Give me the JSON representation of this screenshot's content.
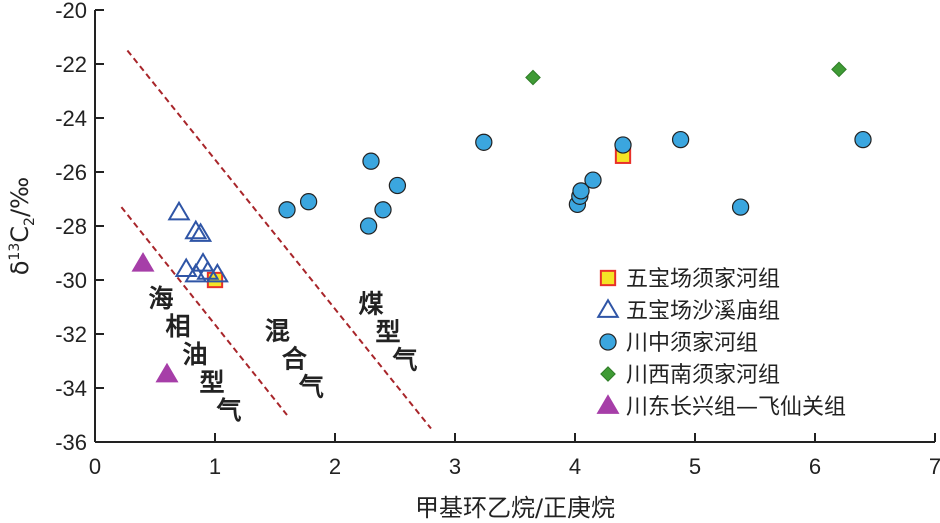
{
  "chart_data": {
    "type": "scatter",
    "xlabel": "甲基环乙烷/正庚烷",
    "ylabel_main": "δ",
    "ylabel_sup": "13",
    "ylabel_mid": "C",
    "ylabel_sub": "2",
    "ylabel_tail": "/‰",
    "xlim": [
      0,
      7
    ],
    "ylim": [
      -36,
      -20
    ],
    "xticks": [
      0,
      1,
      2,
      3,
      4,
      5,
      6,
      7
    ],
    "yticks": [
      -20,
      -22,
      -24,
      -26,
      -28,
      -30,
      -32,
      -34,
      -36
    ],
    "legend_position": "bottom-right",
    "series": [
      {
        "name": "五宝场须家河组",
        "marker": "square",
        "fill": "#f5e425",
        "stroke": "#e8302a",
        "points": [
          [
            4.4,
            -25.4
          ],
          [
            1.0,
            -30.0
          ]
        ]
      },
      {
        "name": "五宝场沙溪庙组",
        "marker": "triangle-open",
        "fill": "none",
        "stroke": "#2f55a6",
        "points": [
          [
            0.7,
            -27.5
          ],
          [
            0.84,
            -28.2
          ],
          [
            0.88,
            -28.3
          ],
          [
            0.76,
            -29.6
          ],
          [
            0.9,
            -29.4
          ],
          [
            0.84,
            -29.8
          ],
          [
            0.94,
            -29.7
          ],
          [
            1.02,
            -29.8
          ]
        ]
      },
      {
        "name": "川中须家河组",
        "marker": "circle",
        "fill": "#3ba6df",
        "stroke": "#222222",
        "points": [
          [
            1.6,
            -27.4
          ],
          [
            1.78,
            -27.1
          ],
          [
            2.3,
            -25.6
          ],
          [
            2.28,
            -28.0
          ],
          [
            2.4,
            -27.4
          ],
          [
            2.52,
            -26.5
          ],
          [
            3.24,
            -24.9
          ],
          [
            4.02,
            -27.2
          ],
          [
            4.04,
            -26.9
          ],
          [
            4.05,
            -26.7
          ],
          [
            4.15,
            -26.3
          ],
          [
            4.4,
            -25.0
          ],
          [
            4.88,
            -24.8
          ],
          [
            5.38,
            -27.3
          ],
          [
            6.4,
            -24.8
          ]
        ]
      },
      {
        "name": "川西南须家河组",
        "marker": "diamond",
        "fill": "#3f9b35",
        "stroke": "#2f7d28",
        "points": [
          [
            3.65,
            -22.5
          ],
          [
            6.2,
            -22.2
          ]
        ]
      },
      {
        "name": "川东长兴组—飞仙关组",
        "marker": "triangle-filled",
        "fill": "#a63ea8",
        "stroke": "#a63ea8",
        "points": [
          [
            0.4,
            -29.4
          ],
          [
            0.6,
            -33.5
          ]
        ]
      }
    ],
    "boundary_lines": [
      {
        "from": [
          0.27,
          -21.5
        ],
        "to": [
          2.8,
          -35.5
        ]
      },
      {
        "from": [
          0.22,
          -27.3
        ],
        "to": [
          1.6,
          -35.0
        ]
      }
    ],
    "regions": [
      {
        "chars": [
          "海",
          "相",
          "油",
          "型",
          "气"
        ],
        "anchor": [
          0.55,
          -31.0
        ]
      },
      {
        "chars": [
          "混",
          "合",
          "气"
        ],
        "anchor": [
          1.52,
          -32.2
        ]
      },
      {
        "chars": [
          "煤",
          "型",
          "气"
        ],
        "anchor": [
          2.3,
          -31.2
        ]
      }
    ]
  }
}
